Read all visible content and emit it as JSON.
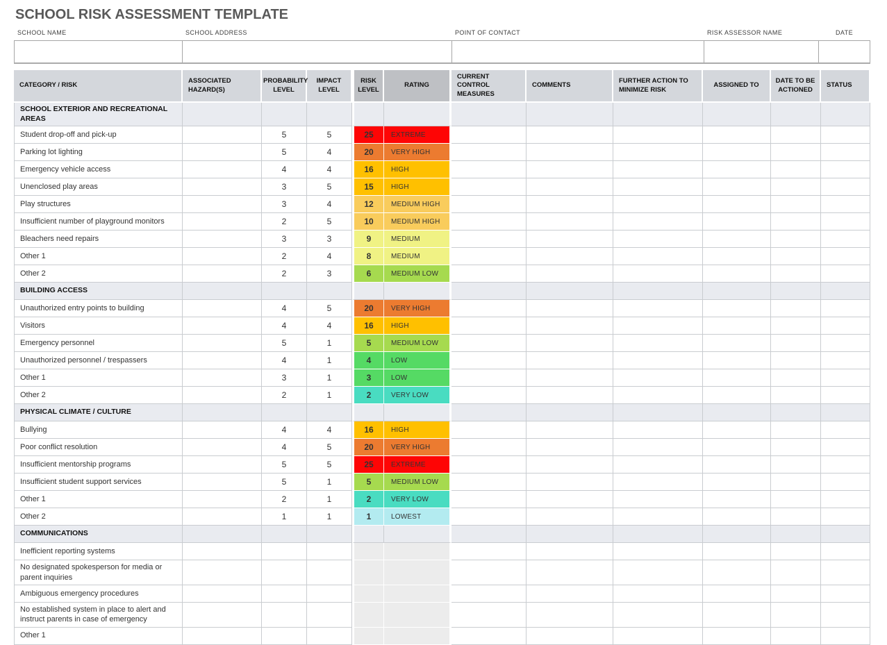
{
  "title": "SCHOOL RISK ASSESSMENT TEMPLATE",
  "form": {
    "fields": [
      {
        "label": "SCHOOL NAME",
        "value": ""
      },
      {
        "label": "SCHOOL ADDRESS",
        "value": ""
      },
      {
        "label": "POINT OF CONTACT",
        "value": ""
      },
      {
        "label": "RISK ASSESSOR NAME",
        "value": ""
      },
      {
        "label": "DATE",
        "value": ""
      }
    ]
  },
  "table": {
    "columns": [
      "CATEGORY / RISK",
      "ASSOCIATED HAZARD(S)",
      "PROBABILITY LEVEL",
      "IMPACT LEVEL",
      "RISK LEVEL",
      "RATING",
      "CURRENT CONTROL MEASURES",
      "COMMENTS",
      "FURTHER ACTION TO MINIMIZE RISK",
      "ASSIGNED TO",
      "DATE TO BE ACTIONED",
      "STATUS"
    ],
    "sections": [
      {
        "name": "SCHOOL EXTERIOR AND RECREATIONAL AREAS",
        "rows": [
          {
            "risk": "Student drop-off and pick-up",
            "probability": "5",
            "impact": "5",
            "risk_level": "25",
            "rating": "EXTREME",
            "rating_key": "extreme"
          },
          {
            "risk": "Parking lot lighting",
            "probability": "5",
            "impact": "4",
            "risk_level": "20",
            "rating": "VERY HIGH",
            "rating_key": "very_high"
          },
          {
            "risk": "Emergency vehicle access",
            "probability": "4",
            "impact": "4",
            "risk_level": "16",
            "rating": "HIGH",
            "rating_key": "high"
          },
          {
            "risk": "Unenclosed play areas",
            "probability": "3",
            "impact": "5",
            "risk_level": "15",
            "rating": "HIGH",
            "rating_key": "high"
          },
          {
            "risk": "Play structures",
            "probability": "3",
            "impact": "4",
            "risk_level": "12",
            "rating": "MEDIUM HIGH",
            "rating_key": "medium_high"
          },
          {
            "risk": "Insufficient number of playground monitors",
            "probability": "2",
            "impact": "5",
            "risk_level": "10",
            "rating": "MEDIUM HIGH",
            "rating_key": "medium_high"
          },
          {
            "risk": "Bleachers need repairs",
            "probability": "3",
            "impact": "3",
            "risk_level": "9",
            "rating": "MEDIUM",
            "rating_key": "medium"
          },
          {
            "risk": "Other 1",
            "probability": "2",
            "impact": "4",
            "risk_level": "8",
            "rating": "MEDIUM",
            "rating_key": "medium"
          },
          {
            "risk": "Other 2",
            "probability": "2",
            "impact": "3",
            "risk_level": "6",
            "rating": "MEDIUM LOW",
            "rating_key": "medium_low"
          }
        ]
      },
      {
        "name": "BUILDING ACCESS",
        "rows": [
          {
            "risk": "Unauthorized entry points to building",
            "probability": "4",
            "impact": "5",
            "risk_level": "20",
            "rating": "VERY HIGH",
            "rating_key": "very_high"
          },
          {
            "risk": "Visitors",
            "probability": "4",
            "impact": "4",
            "risk_level": "16",
            "rating": "HIGH",
            "rating_key": "high"
          },
          {
            "risk": "Emergency personnel",
            "probability": "5",
            "impact": "1",
            "risk_level": "5",
            "rating": "MEDIUM LOW",
            "rating_key": "medium_low"
          },
          {
            "risk": "Unauthorized personnel / trespassers",
            "probability": "4",
            "impact": "1",
            "risk_level": "4",
            "rating": "LOW",
            "rating_key": "low"
          },
          {
            "risk": "Other 1",
            "probability": "3",
            "impact": "1",
            "risk_level": "3",
            "rating": "LOW",
            "rating_key": "low"
          },
          {
            "risk": "Other 2",
            "probability": "2",
            "impact": "1",
            "risk_level": "2",
            "rating": "VERY LOW",
            "rating_key": "very_low"
          }
        ]
      },
      {
        "name": "PHYSICAL CLIMATE / CULTURE",
        "rows": [
          {
            "risk": "Bullying",
            "probability": "4",
            "impact": "4",
            "risk_level": "16",
            "rating": "HIGH",
            "rating_key": "high"
          },
          {
            "risk": "Poor conflict resolution",
            "probability": "4",
            "impact": "5",
            "risk_level": "20",
            "rating": "VERY HIGH",
            "rating_key": "very_high"
          },
          {
            "risk": "Insufficient mentorship programs",
            "probability": "5",
            "impact": "5",
            "risk_level": "25",
            "rating": "EXTREME",
            "rating_key": "extreme"
          },
          {
            "risk": "Insufficient student support services",
            "probability": "5",
            "impact": "1",
            "risk_level": "5",
            "rating": "MEDIUM LOW",
            "rating_key": "medium_low"
          },
          {
            "risk": "Other 1",
            "probability": "2",
            "impact": "1",
            "risk_level": "2",
            "rating": "VERY LOW",
            "rating_key": "very_low"
          },
          {
            "risk": "Other 2",
            "probability": "1",
            "impact": "1",
            "risk_level": "1",
            "rating": "LOWEST",
            "rating_key": "lowest"
          }
        ]
      },
      {
        "name": "COMMUNICATIONS",
        "rows": [
          {
            "risk": "Inefficient reporting systems",
            "probability": "",
            "impact": "",
            "risk_level": "",
            "rating": "",
            "rating_key": null
          },
          {
            "risk": "No designated spokesperson for media or parent inquiries",
            "probability": "",
            "impact": "",
            "risk_level": "",
            "rating": "",
            "rating_key": null
          },
          {
            "risk": "Ambiguous emergency procedures",
            "probability": "",
            "impact": "",
            "risk_level": "",
            "rating": "",
            "rating_key": null
          },
          {
            "risk": "No established system in place to alert and instruct parents in case of emergency",
            "probability": "",
            "impact": "",
            "risk_level": "",
            "rating": "",
            "rating_key": null
          },
          {
            "risk": "Other 1",
            "probability": "",
            "impact": "",
            "risk_level": "",
            "rating": "",
            "rating_key": null
          }
        ]
      }
    ]
  },
  "colors": {
    "extreme": "#FE0505",
    "very_high": "#EC7B30",
    "high": "#FFC000",
    "medium_high": "#F9CC5C",
    "medium": "#F0F284",
    "medium_low": "#A6DA4F",
    "low": "#55DA64",
    "very_low": "#49DCC1",
    "lowest": "#B3EBF0",
    "header_bg": "#D4D7DC",
    "header_dark_bg": "#BEC0C4",
    "section_bg": "#E9EBF0"
  }
}
